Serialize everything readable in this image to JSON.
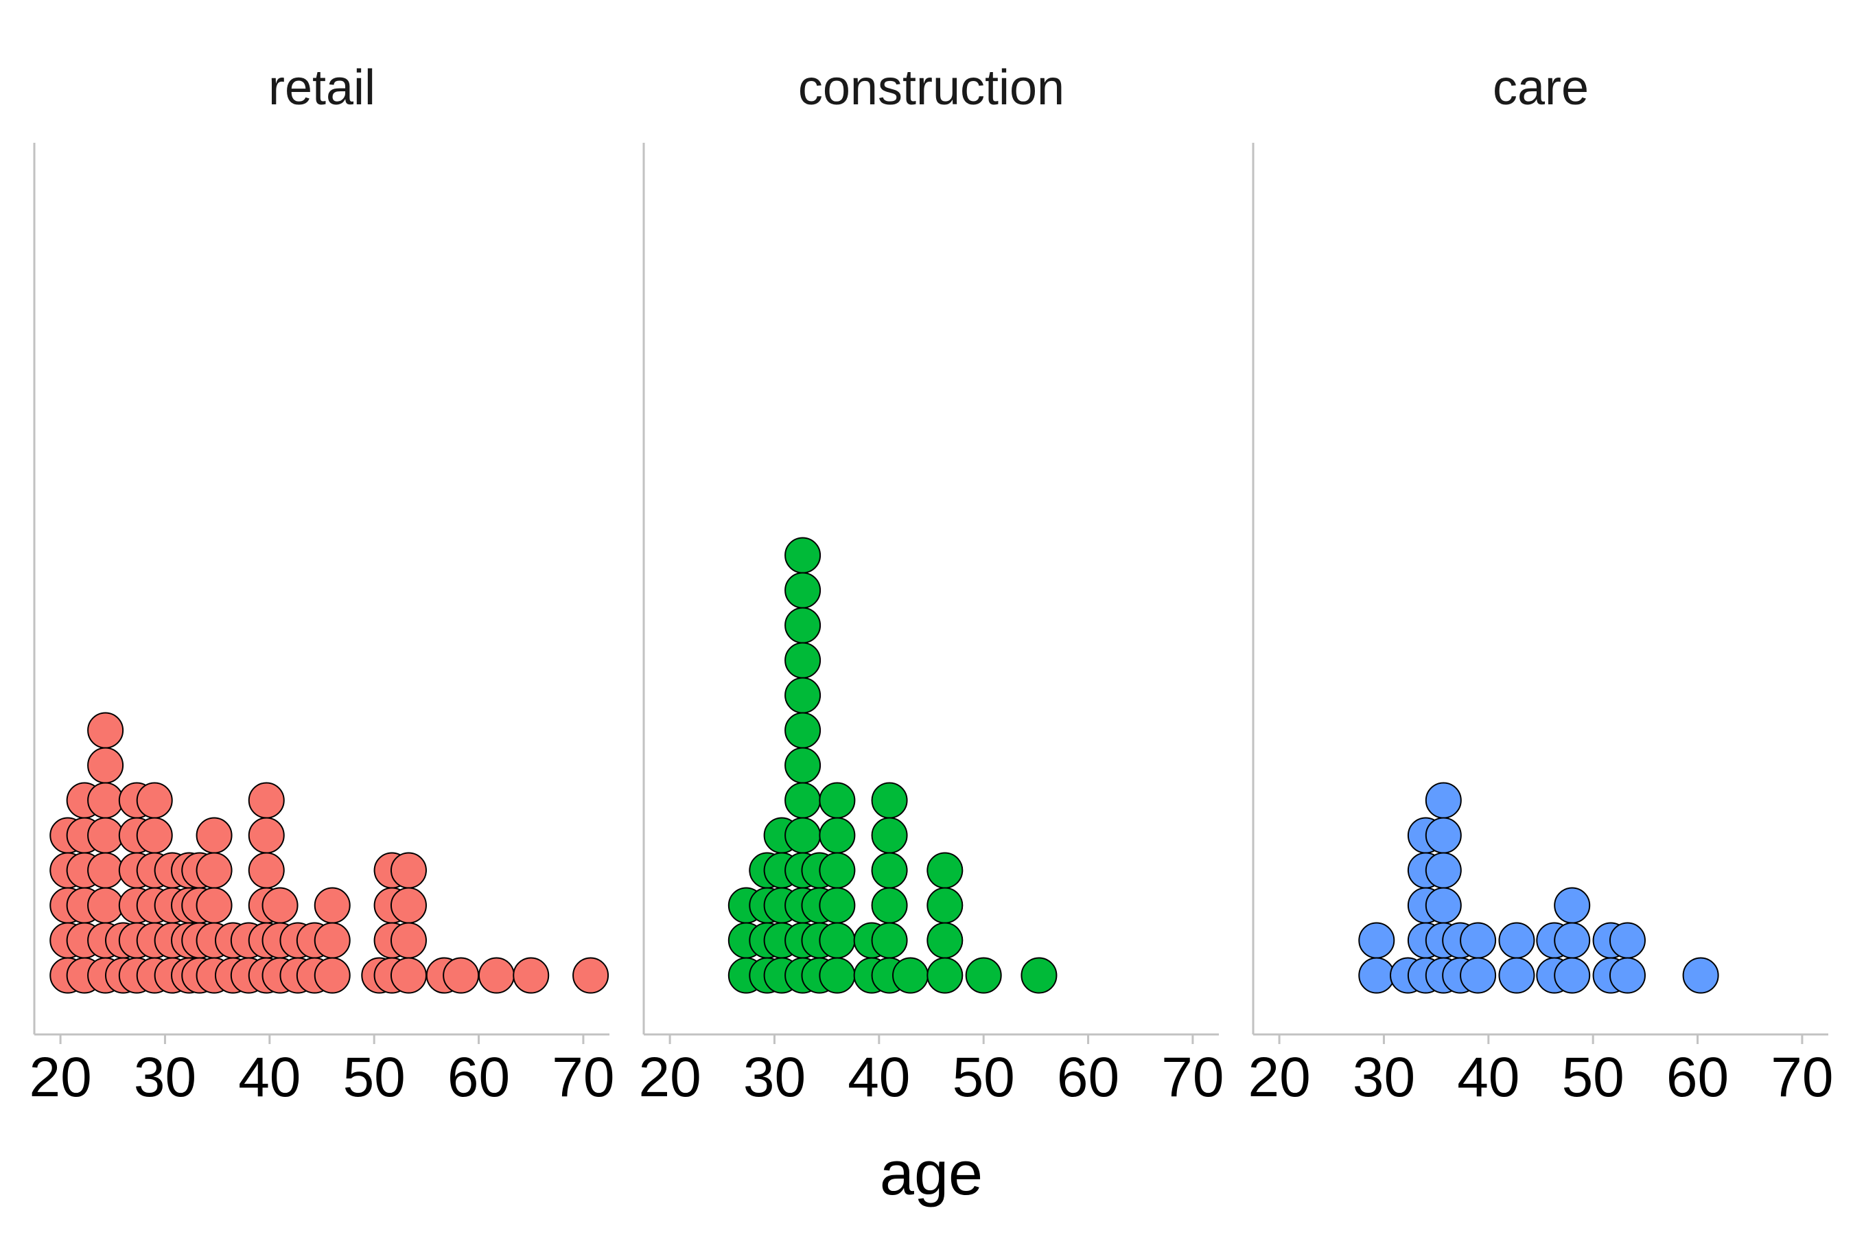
{
  "chart_data": {
    "type": "dotplot",
    "xlabel": "age",
    "xticks": [
      20,
      30,
      40,
      50,
      60,
      70
    ],
    "xlim": [
      17.5,
      72.5
    ],
    "facets": [
      {
        "name": "retail",
        "color": "#F8766D",
        "dots": [
          {
            "x": 20.7,
            "count": 5
          },
          {
            "x": 22.3,
            "count": 6
          },
          {
            "x": 24.3,
            "count": 8
          },
          {
            "x": 26.0,
            "count": 2
          },
          {
            "x": 27.3,
            "count": 6
          },
          {
            "x": 29.0,
            "count": 6
          },
          {
            "x": 30.7,
            "count": 4
          },
          {
            "x": 32.3,
            "count": 4
          },
          {
            "x": 33.3,
            "count": 4
          },
          {
            "x": 34.7,
            "count": 5
          },
          {
            "x": 36.5,
            "count": 2
          },
          {
            "x": 38.0,
            "count": 2
          },
          {
            "x": 39.7,
            "count": 6
          },
          {
            "x": 41.0,
            "count": 3
          },
          {
            "x": 42.7,
            "count": 2
          },
          {
            "x": 44.3,
            "count": 2
          },
          {
            "x": 46.0,
            "count": 3
          },
          {
            "x": 50.5,
            "count": 1
          },
          {
            "x": 51.7,
            "count": 4
          },
          {
            "x": 53.3,
            "count": 4
          },
          {
            "x": 56.7,
            "count": 1
          },
          {
            "x": 58.3,
            "count": 1
          },
          {
            "x": 61.7,
            "count": 1
          },
          {
            "x": 65.0,
            "count": 1
          },
          {
            "x": 70.7,
            "count": 1
          }
        ]
      },
      {
        "name": "construction",
        "color": "#00BA38",
        "dots": [
          {
            "x": 27.3,
            "count": 3
          },
          {
            "x": 29.3,
            "count": 4
          },
          {
            "x": 30.7,
            "count": 5
          },
          {
            "x": 32.7,
            "count": 13
          },
          {
            "x": 34.3,
            "count": 4
          },
          {
            "x": 36.0,
            "count": 6
          },
          {
            "x": 39.3,
            "count": 2
          },
          {
            "x": 41.0,
            "count": 6
          },
          {
            "x": 43.0,
            "count": 1
          },
          {
            "x": 46.3,
            "count": 4
          },
          {
            "x": 50.0,
            "count": 1
          },
          {
            "x": 55.3,
            "count": 1
          }
        ]
      },
      {
        "name": "care",
        "color": "#619CFF",
        "dots": [
          {
            "x": 29.3,
            "count": 2
          },
          {
            "x": 32.3,
            "count": 1
          },
          {
            "x": 34.0,
            "count": 5
          },
          {
            "x": 35.7,
            "count": 6
          },
          {
            "x": 37.3,
            "count": 2
          },
          {
            "x": 39.0,
            "count": 2
          },
          {
            "x": 42.7,
            "count": 2
          },
          {
            "x": 46.3,
            "count": 2
          },
          {
            "x": 48.0,
            "count": 3
          },
          {
            "x": 51.7,
            "count": 2
          },
          {
            "x": 53.3,
            "count": 2
          },
          {
            "x": 60.3,
            "count": 1
          }
        ]
      }
    ],
    "grid": false,
    "legend": "none"
  }
}
